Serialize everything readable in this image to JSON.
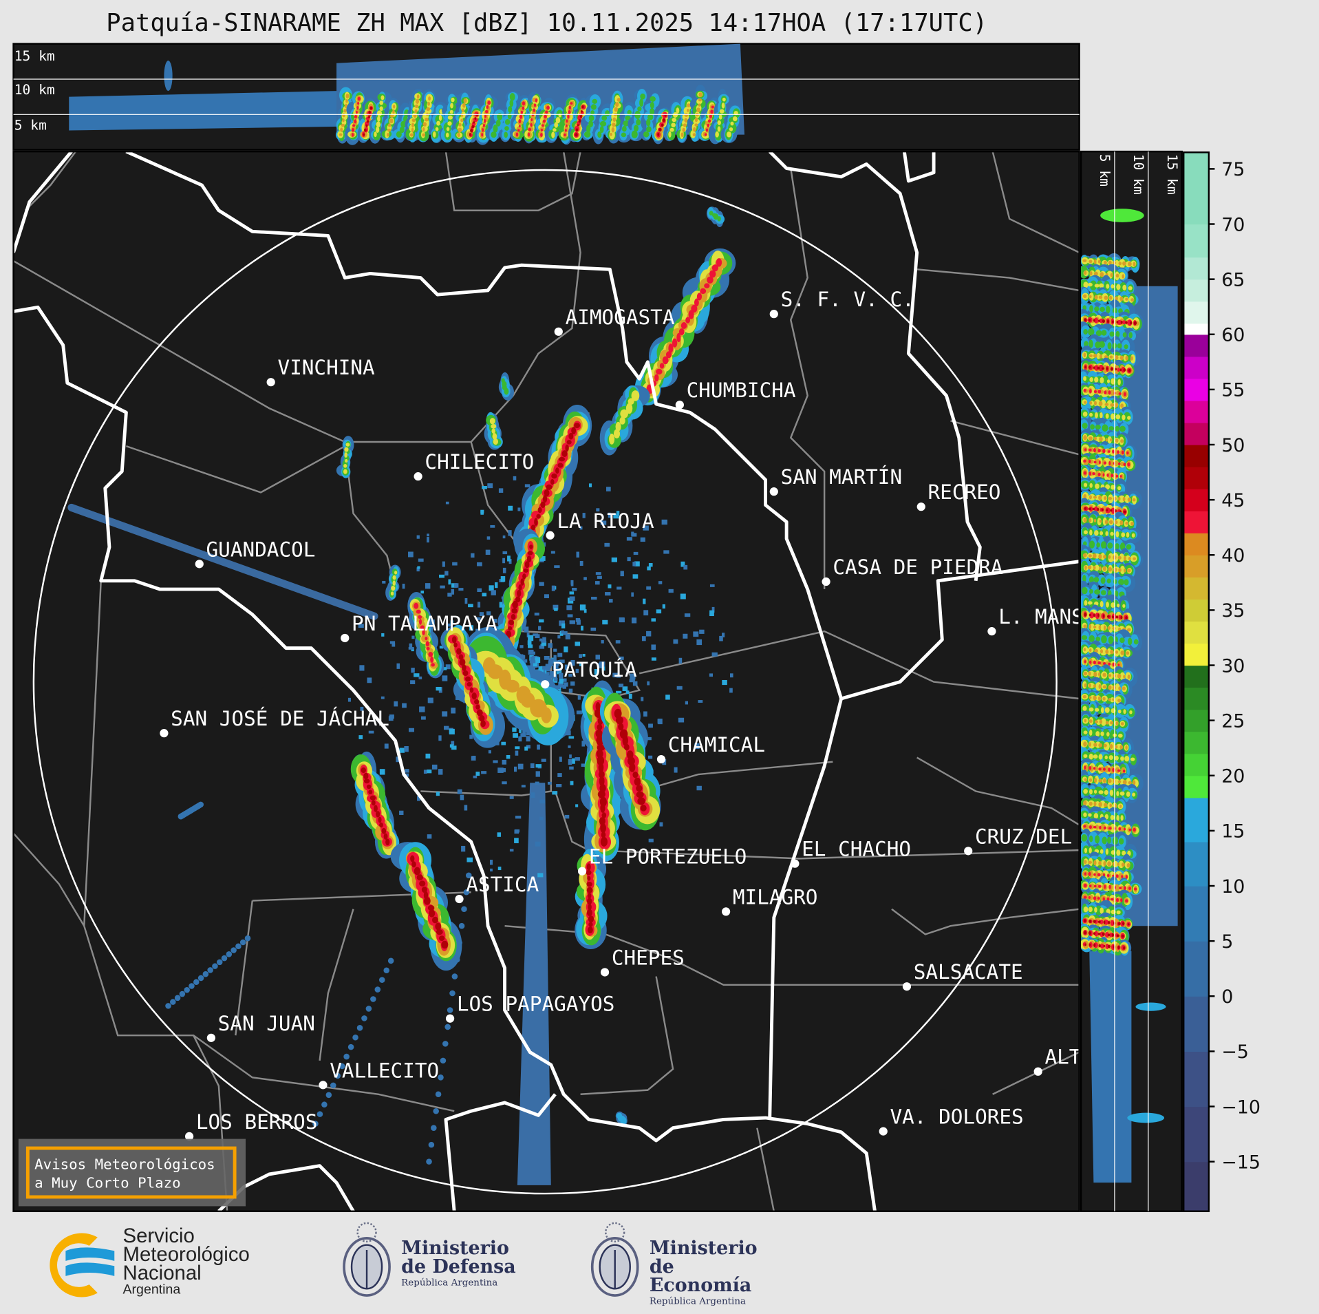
{
  "title": "Patquía-SINARAME ZH MAX [dBZ] 10.11.2025 14:17HOA (17:17UTC)",
  "top_panel": {
    "height_labels": [
      "15 km",
      "10 km",
      "5 km"
    ]
  },
  "side_panel": {
    "height_labels": [
      "5 km",
      "10 km",
      "15 km"
    ]
  },
  "colorbar": {
    "unit": "dBZ",
    "range": [
      -19.5,
      76.5
    ],
    "ticks": [
      "75",
      "70",
      "65",
      "60",
      "55",
      "50",
      "45",
      "40",
      "35",
      "30",
      "25",
      "20",
      "15",
      "10",
      "5",
      "0",
      "−5",
      "−10",
      "−15"
    ],
    "colors": [
      {
        "from": -19.5,
        "to": -15,
        "color": "#3b3d6b"
      },
      {
        "from": -15,
        "to": -10,
        "color": "#3d4679"
      },
      {
        "from": -10,
        "to": -5,
        "color": "#3d5186"
      },
      {
        "from": -5,
        "to": 0,
        "color": "#3a5f96"
      },
      {
        "from": 0,
        "to": 5,
        "color": "#366ea6"
      },
      {
        "from": 5,
        "to": 10,
        "color": "#327cb4"
      },
      {
        "from": 10,
        "to": 14,
        "color": "#2d8ec4"
      },
      {
        "from": 14,
        "to": 18,
        "color": "#2aa8dc"
      },
      {
        "from": 18,
        "to": 20,
        "color": "#4fe83a"
      },
      {
        "from": 20,
        "to": 22,
        "color": "#45d235"
      },
      {
        "from": 22,
        "to": 24,
        "color": "#3cb830"
      },
      {
        "from": 24,
        "to": 26,
        "color": "#33a02a"
      },
      {
        "from": 26,
        "to": 28,
        "color": "#2b8a24"
      },
      {
        "from": 28,
        "to": 30,
        "color": "#22701c"
      },
      {
        "from": 30,
        "to": 32,
        "color": "#f2f03a"
      },
      {
        "from": 32,
        "to": 34,
        "color": "#e0e040"
      },
      {
        "from": 34,
        "to": 36,
        "color": "#cfcc36"
      },
      {
        "from": 36,
        "to": 38,
        "color": "#d4b830"
      },
      {
        "from": 38,
        "to": 40,
        "color": "#d89e28"
      },
      {
        "from": 40,
        "to": 42,
        "color": "#dc8a20"
      },
      {
        "from": 42,
        "to": 44,
        "color": "#ee1436"
      },
      {
        "from": 44,
        "to": 46,
        "color": "#d4001c"
      },
      {
        "from": 46,
        "to": 48,
        "color": "#b00008"
      },
      {
        "from": 48,
        "to": 50,
        "color": "#980000"
      },
      {
        "from": 50,
        "to": 52,
        "color": "#c4005e"
      },
      {
        "from": 52,
        "to": 54,
        "color": "#dc009a"
      },
      {
        "from": 54,
        "to": 56,
        "color": "#ea00e4"
      },
      {
        "from": 56,
        "to": 58,
        "color": "#cc00c8"
      },
      {
        "from": 58,
        "to": 60,
        "color": "#9a009a"
      },
      {
        "from": 60,
        "to": 61,
        "color": "#ffffff"
      },
      {
        "from": 61,
        "to": 63,
        "color": "#e0f6ec"
      },
      {
        "from": 63,
        "to": 65,
        "color": "#c6eedd"
      },
      {
        "from": 65,
        "to": 67,
        "color": "#b2e8d4"
      },
      {
        "from": 67,
        "to": 70,
        "color": "#98e2c6"
      },
      {
        "from": 70,
        "to": 76.5,
        "color": "#88dcbc"
      }
    ]
  },
  "map": {
    "radar_site": "PATQUÍA",
    "cities": [
      {
        "name": "S. F. V. C.",
        "pt": [
          920,
          373
        ]
      },
      {
        "name": "AIMOGASTA",
        "pt": [
          664,
          394
        ]
      },
      {
        "name": "VINCHINA",
        "pt": [
          322,
          454
        ]
      },
      {
        "name": "CHUMBICHA",
        "pt": [
          808,
          481
        ]
      },
      {
        "name": "CHILECITO",
        "pt": [
          497,
          566
        ]
      },
      {
        "name": "SAN MARTÍN",
        "pt": [
          920,
          584
        ]
      },
      {
        "name": "RECREO",
        "pt": [
          1095,
          602
        ]
      },
      {
        "name": "LA RIOJA",
        "pt": [
          654,
          636
        ]
      },
      {
        "name": "GUANDACOL",
        "pt": [
          237,
          670
        ]
      },
      {
        "name": "CASA DE PIEDRA",
        "pt": [
          982,
          691
        ]
      },
      {
        "name": "L. MANS",
        "pt": [
          1179,
          750
        ]
      },
      {
        "name": "PN TALAMPAYA",
        "pt": [
          410,
          758
        ]
      },
      {
        "name": "PATQUÍA",
        "pt": [
          648,
          813
        ]
      },
      {
        "name": "SAN JOSÉ DE JÁCHAL",
        "pt": [
          195,
          871
        ]
      },
      {
        "name": "CHAMICAL",
        "pt": [
          786,
          902
        ]
      },
      {
        "name": "EL CHACHO",
        "pt": [
          945,
          1026
        ]
      },
      {
        "name": "CRUZ DEL",
        "pt": [
          1151,
          1011
        ]
      },
      {
        "name": "EL PORTEZUELO",
        "pt": [
          692,
          1035
        ]
      },
      {
        "name": "ASTICA",
        "pt": [
          546,
          1068
        ]
      },
      {
        "name": "MILAGRO",
        "pt": [
          863,
          1083
        ]
      },
      {
        "name": "CHEPES",
        "pt": [
          719,
          1155
        ]
      },
      {
        "name": "SALSACATE",
        "pt": [
          1078,
          1172
        ]
      },
      {
        "name": "LOS PAPAGAYOS",
        "pt": [
          535,
          1210
        ]
      },
      {
        "name": "SAN JUAN",
        "pt": [
          251,
          1233
        ]
      },
      {
        "name": "ALT",
        "pt": [
          1234,
          1273
        ]
      },
      {
        "name": "VALLECITO",
        "pt": [
          384,
          1289
        ]
      },
      {
        "name": "VA. DOLORES",
        "pt": [
          1050,
          1344
        ]
      },
      {
        "name": "LOS BERROS",
        "pt": [
          225,
          1350
        ]
      }
    ]
  },
  "notice": {
    "line1": "Avisos Meteorológicos",
    "line2": "a Muy Corto Plazo",
    "border_color": "#f5a000"
  },
  "logos": {
    "smn": {
      "line1": "Servicio",
      "line2": "Meteorológico",
      "line3": "Nacional",
      "line4": "Argentina"
    },
    "defensa": {
      "line1": "Ministerio",
      "line2": "de Defensa",
      "line3": "República Argentina"
    },
    "economia": {
      "line1": "Ministerio",
      "line2": "de Economía",
      "line3": "República Argentina"
    }
  }
}
